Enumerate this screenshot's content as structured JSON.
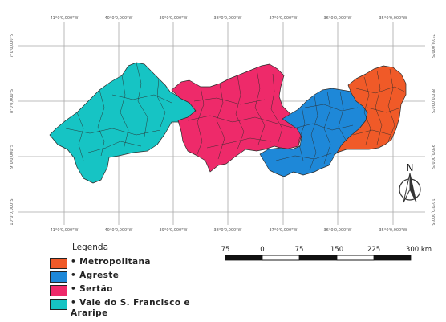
{
  "map": {
    "grid_top_labels": [
      "41°0'0,000\"W",
      "40°0'0,000\"W",
      "39°0'0,000\"W",
      "38°0'0,000\"W",
      "37°0'0,000\"W",
      "36°0'0,000\"W",
      "35°0'0,000\"W"
    ],
    "grid_bottom_labels": [
      "41°0'0,000\"W",
      "40°0'0,000\"W",
      "39°0'0,000\"W",
      "38°0'0,000\"W",
      "37°0'0,000\"W",
      "36°0'0,000\"W",
      "35°0'0,000\"W"
    ],
    "grid_left_labels": [
      "7°0'0,000\"S",
      "8°0'0,000\"S",
      "9°0'0,000\"S",
      "10°0'0,000\"S"
    ],
    "grid_right_labels": [
      "7°0'0,000\"S",
      "8°0'0,000\"S",
      "9°0'0,000\"S",
      "10°0'0,000\"S"
    ],
    "regions": [
      {
        "name": "Metropolitana",
        "color": "#f05a28"
      },
      {
        "name": "Agreste",
        "color": "#1e88d8"
      },
      {
        "name": "Sertão",
        "color": "#ee2a6a"
      },
      {
        "name": "Vale do S. Francisco e Araripe",
        "color": "#16c4c4"
      }
    ],
    "north_arrow_label": "N"
  },
  "legend": {
    "title": "Legenda",
    "bullet": "•",
    "items": [
      {
        "label": "Metropolitana",
        "color": "#f05a28"
      },
      {
        "label": "Agreste",
        "color": "#1e88d8"
      },
      {
        "label": "Sertão",
        "color": "#ee2a6a"
      },
      {
        "label": "Vale do S. Francisco e Araripe",
        "color": "#16c4c4"
      }
    ]
  },
  "scale_bar": {
    "ticks": [
      "75",
      "0",
      "75",
      "150",
      "225",
      "300 km"
    ]
  }
}
